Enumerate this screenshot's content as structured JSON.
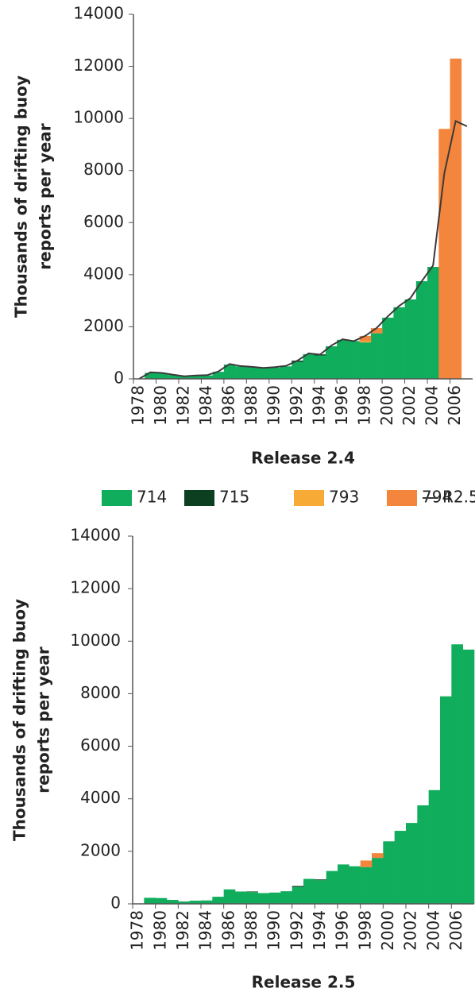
{
  "chart_data": [
    {
      "type": "bar",
      "stacked": true,
      "xlabel": "Release 2.4",
      "ylabel": [
        "Thousands of drifting buoy",
        "reports per year"
      ],
      "categories": [
        "1978",
        null,
        "1980",
        null,
        "1982",
        null,
        "1984",
        null,
        "1986",
        null,
        "1988",
        null,
        "1990",
        null,
        "1992",
        null,
        "1994",
        null,
        "1996",
        null,
        "1998",
        null,
        "2000",
        null,
        "2002",
        null,
        "2004",
        null,
        "2006",
        null
      ],
      "series": [
        {
          "name": "714",
          "color": "#10ad5c",
          "values": [
            0,
            230,
            220,
            150,
            100,
            130,
            130,
            270,
            550,
            480,
            450,
            420,
            430,
            480,
            650,
            950,
            900,
            1250,
            1500,
            1450,
            1400,
            1750,
            2350,
            2750,
            3050,
            3750,
            4300,
            0,
            0,
            0
          ]
        },
        {
          "name": "715",
          "color": "#0b3f20",
          "values": [
            0,
            0,
            0,
            0,
            0,
            0,
            0,
            0,
            0,
            0,
            0,
            0,
            0,
            0,
            50,
            0,
            40,
            0,
            0,
            0,
            0,
            0,
            0,
            0,
            0,
            0,
            0,
            0,
            0,
            0
          ]
        },
        {
          "name": "793",
          "color": "#f8aa36",
          "values": [
            0,
            0,
            0,
            0,
            0,
            0,
            0,
            0,
            0,
            0,
            0,
            0,
            0,
            0,
            0,
            0,
            0,
            0,
            0,
            0,
            50,
            0,
            0,
            0,
            0,
            0,
            0,
            0,
            0,
            0
          ]
        },
        {
          "name": "794",
          "color": "#f4853d",
          "values": [
            0,
            0,
            0,
            0,
            0,
            0,
            0,
            0,
            0,
            0,
            0,
            0,
            0,
            0,
            0,
            0,
            0,
            0,
            0,
            0,
            200,
            200,
            0,
            0,
            0,
            0,
            0,
            9600,
            12300,
            0
          ]
        },
        {
          "name": "R2.5",
          "type": "line",
          "color": "#3a3a3a",
          "values": [
            0,
            250,
            230,
            160,
            100,
            130,
            140,
            280,
            570,
            490,
            460,
            420,
            450,
            500,
            700,
            980,
            930,
            1280,
            1520,
            1450,
            1650,
            1950,
            2400,
            2800,
            3100,
            3750,
            4350,
            7900,
            9900,
            9700
          ]
        }
      ],
      "ylim": [
        0,
        14000
      ],
      "yticks": [
        0,
        2000,
        4000,
        6000,
        8000,
        10000,
        12000,
        14000
      ],
      "grid": false
    },
    {
      "type": "bar",
      "stacked": true,
      "xlabel": "Release 2.5",
      "ylabel": [
        "Thousands of drifting buoy",
        "reports per year"
      ],
      "categories": [
        "1978",
        null,
        "1980",
        null,
        "1982",
        null,
        "1984",
        null,
        "1986",
        null,
        "1988",
        null,
        "1990",
        null,
        "1992",
        null,
        "1994",
        null,
        "1996",
        null,
        "1998",
        null,
        "2000",
        null,
        "2002",
        null,
        "2004",
        null,
        "2006",
        null
      ],
      "series": [
        {
          "color": "#10ad5c",
          "values": [
            0,
            230,
            220,
            150,
            90,
            120,
            130,
            270,
            550,
            470,
            450,
            410,
            430,
            480,
            640,
            950,
            900,
            1250,
            1500,
            1430,
            1400,
            1750,
            2380,
            2780,
            3080,
            3750,
            4330,
            7900,
            9880,
            9680
          ]
        },
        {
          "color": "#0b3f20",
          "values": [
            0,
            0,
            0,
            0,
            0,
            0,
            0,
            0,
            0,
            0,
            20,
            0,
            0,
            0,
            40,
            0,
            30,
            0,
            0,
            0,
            0,
            0,
            0,
            0,
            0,
            0,
            0,
            0,
            0,
            0
          ]
        },
        {
          "color": "#f8aa36",
          "values": [
            0,
            0,
            0,
            0,
            0,
            0,
            0,
            0,
            0,
            0,
            0,
            0,
            0,
            0,
            0,
            0,
            0,
            0,
            0,
            0,
            0,
            0,
            0,
            0,
            0,
            0,
            0,
            0,
            0,
            0
          ]
        },
        {
          "color": "#f4853d",
          "values": [
            0,
            0,
            0,
            0,
            0,
            0,
            0,
            0,
            0,
            0,
            0,
            0,
            0,
            0,
            0,
            0,
            0,
            0,
            0,
            0,
            250,
            180,
            0,
            0,
            0,
            0,
            0,
            0,
            0,
            0
          ]
        }
      ],
      "ylim": [
        0,
        14000
      ],
      "yticks": [
        0,
        2000,
        4000,
        6000,
        8000,
        10000,
        12000,
        14000
      ],
      "grid": false
    }
  ]
}
